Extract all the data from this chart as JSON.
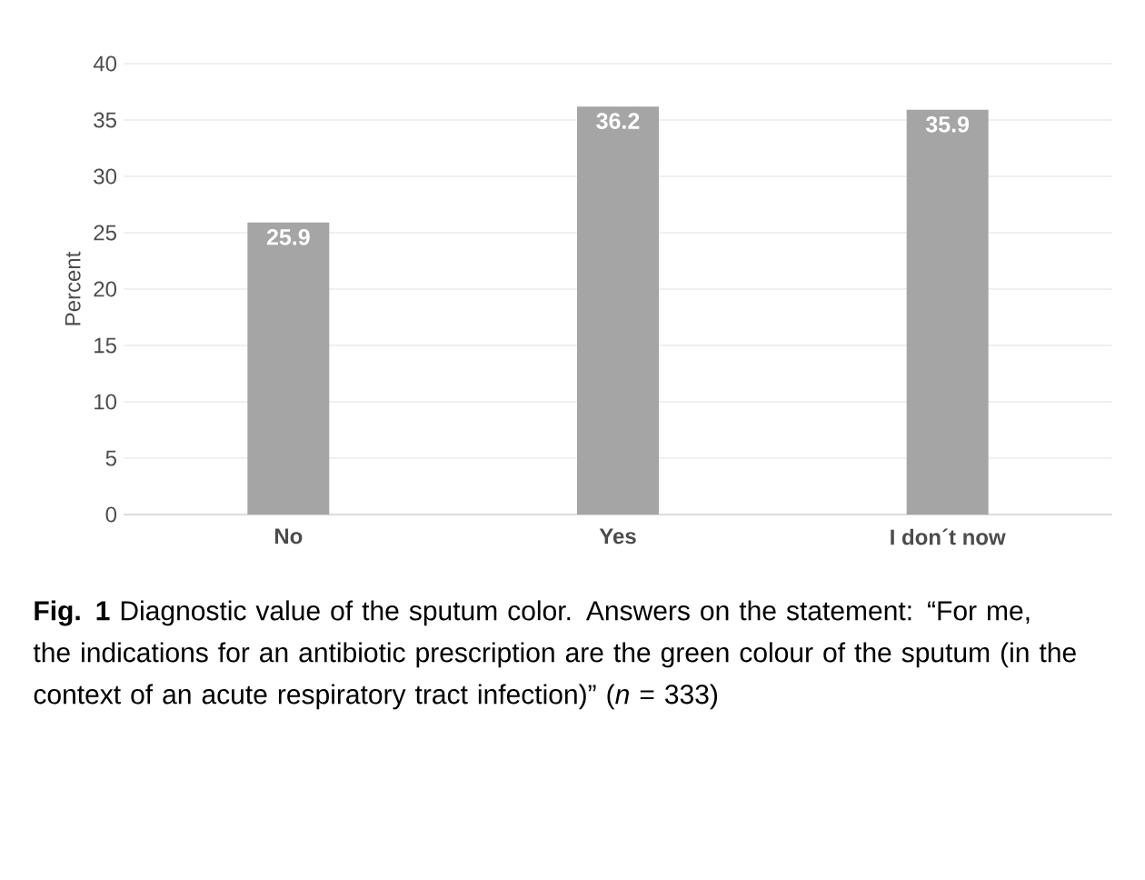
{
  "chart_data": {
    "type": "bar",
    "ylabel": "Percent",
    "categories": [
      "No",
      "Yes",
      "I don´t now"
    ],
    "values": [
      25.9,
      36.2,
      35.9
    ],
    "color": "#a5a5a5",
    "ylim": [
      0,
      40
    ],
    "yticks": [
      0,
      5,
      10,
      15,
      20,
      25,
      30,
      35,
      40
    ],
    "grid": "y",
    "data_labels": true,
    "annotations": [
      "**Fig. 1** Diagnostic value of the sputum color. Answers on the statement: “For me, the indications for an antibiotic prescription are the green colour of the sputum (in the context of an acute respiratory tract infection)” (*n* = 333)"
    ]
  }
}
